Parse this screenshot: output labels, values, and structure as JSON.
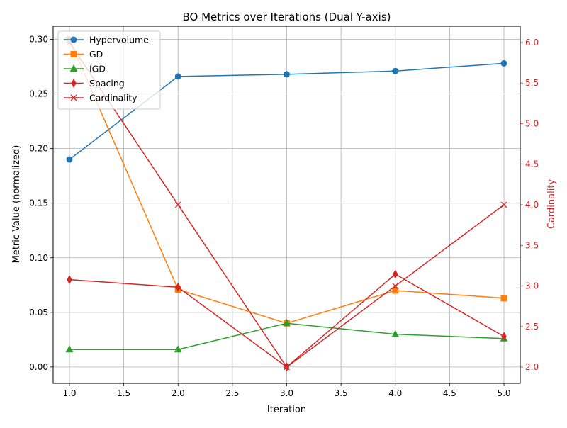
{
  "chart_data": {
    "type": "line",
    "title": "BO Metrics over Iterations (Dual Y-axis)",
    "xlabel": "Iteration",
    "ylabel": "Metric Value (normalized)",
    "y2label": "Cardinality",
    "x": [
      1.0,
      2.0,
      3.0,
      4.0,
      5.0
    ],
    "xlim": [
      0.85,
      5.15
    ],
    "ylim": [
      -0.015,
      0.312
    ],
    "y2lim": [
      1.8,
      6.2
    ],
    "xticks": [
      "1.0",
      "1.5",
      "2.0",
      "2.5",
      "3.0",
      "3.5",
      "4.0",
      "4.5",
      "5.0"
    ],
    "yticks": [
      "0.00",
      "0.05",
      "0.10",
      "0.15",
      "0.20",
      "0.25",
      "0.30"
    ],
    "y2ticks": [
      "2.0",
      "2.5",
      "3.0",
      "3.5",
      "4.0",
      "4.5",
      "5.0",
      "5.5",
      "6.0"
    ],
    "grid": true,
    "legend_position": "top-left",
    "series": [
      {
        "name": "Hypervolume",
        "axis": "left",
        "color": "#1f77b4",
        "marker": "circle",
        "values": [
          0.19,
          0.266,
          0.268,
          0.271,
          0.278
        ]
      },
      {
        "name": "GD",
        "axis": "left",
        "color": "#ff7f0e",
        "marker": "square",
        "values": [
          0.3,
          0.071,
          0.04,
          0.07,
          0.063
        ]
      },
      {
        "name": "IGD",
        "axis": "left",
        "color": "#2ca02c",
        "marker": "triangle",
        "values": [
          0.016,
          0.016,
          0.04,
          0.03,
          0.026
        ]
      },
      {
        "name": "Spacing",
        "axis": "left",
        "color": "#d62728",
        "marker": "thin-diamond",
        "values": [
          0.08,
          0.073,
          0.0,
          0.085,
          0.028
        ]
      },
      {
        "name": "Cardinality",
        "axis": "right",
        "color": "#d62728",
        "marker": "x",
        "values": [
          6,
          4,
          2,
          3,
          4
        ]
      }
    ],
    "right_axis_color": "#d62728"
  }
}
